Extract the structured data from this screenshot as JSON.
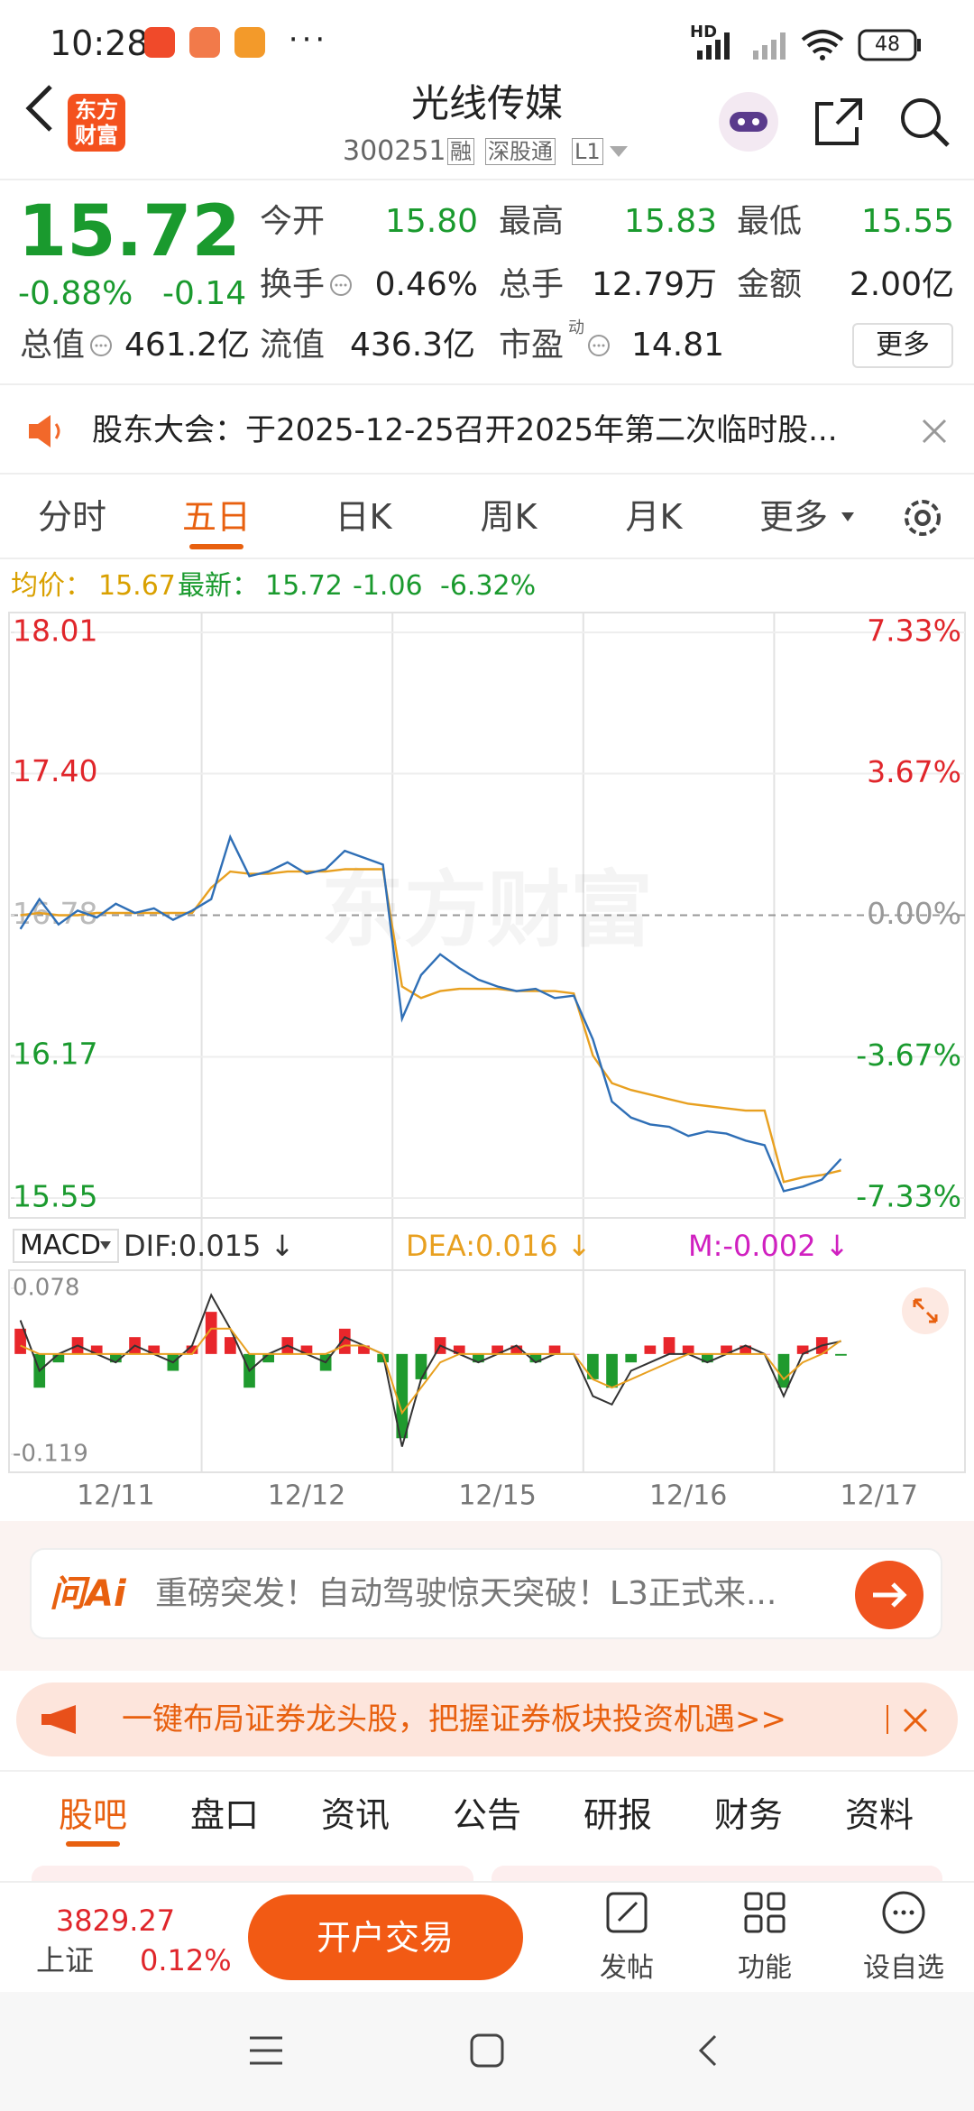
{
  "status": {
    "time": "10:28",
    "network": "HD",
    "battery": "48"
  },
  "header": {
    "logo": [
      "东方",
      "财富"
    ],
    "title": "光线传媒",
    "code": "300251",
    "tags": [
      "融",
      "深股通",
      "L1"
    ]
  },
  "quote": {
    "price": "15.72",
    "change_pct": "-0.88%",
    "change": "-0.14",
    "fields": [
      {
        "label": "今开",
        "value": "15.80"
      },
      {
        "label": "最高",
        "value": "15.83"
      },
      {
        "label": "最低",
        "value": "15.55"
      },
      {
        "label": "换手",
        "value": "0.46%"
      },
      {
        "label": "总手",
        "value": "12.79万"
      },
      {
        "label": "金额",
        "value": "2.00亿"
      },
      {
        "label": "总值",
        "value": "461.2亿"
      },
      {
        "label": "流值",
        "value": "436.3亿"
      },
      {
        "label": "市盈",
        "sup": "动",
        "value": "14.81"
      }
    ],
    "more": "更多"
  },
  "notice": "股东大会：于2025-12-25召开2025年第二次临时股...",
  "tabs": [
    "分时",
    "五日",
    "日K",
    "周K",
    "月K",
    "更多"
  ],
  "chart_header": {
    "avg_label": "均价：",
    "avg": "15.67",
    "last_label": "最新：",
    "last": "15.72",
    "change": "-1.06",
    "change_pct": "-6.32%"
  },
  "chart_data": [
    {
      "type": "line",
      "watermark": "东方财富",
      "ylim": [
        15.55,
        18.01
      ],
      "yticks": [
        15.55,
        16.17,
        16.78,
        {
          "value": 17.4,
          "label": "17.40"
        },
        18.01
      ],
      "y2lim": [
        -7.33,
        7.33
      ],
      "y2ticks": [
        {
          "value": -7.33,
          "label": "-7.33%"
        },
        {
          "value": -3.67,
          "label": "-3.67%"
        },
        {
          "value": 0,
          "label": "0.00%"
        },
        {
          "value": 3.67,
          "label": "3.67%"
        },
        {
          "value": 7.33,
          "label": "7.33%"
        }
      ],
      "grid": true,
      "series": [
        {
          "color": "#2f6fb6",
          "values": [
            16.72,
            16.85,
            16.74,
            16.8,
            16.77,
            16.83,
            16.79,
            16.81,
            16.76,
            16.8,
            16.85,
            17.12,
            16.95,
            16.97,
            17.01,
            16.96,
            16.98,
            17.06,
            17.03,
            17.0,
            16.33,
            16.52,
            16.61,
            16.55,
            16.5,
            16.47,
            16.45,
            16.46,
            16.42,
            16.43,
            16.24,
            15.97,
            15.9,
            15.87,
            15.86,
            15.82,
            15.84,
            15.83,
            15.8,
            15.78,
            15.58,
            15.6,
            15.63,
            15.72,
            null,
            null,
            null,
            null,
            null,
            null
          ]
        },
        {
          "color": "#e8a020",
          "values": [
            16.78,
            16.79,
            16.78,
            16.78,
            16.79,
            16.79,
            16.79,
            16.79,
            16.79,
            16.79,
            16.9,
            16.97,
            16.96,
            16.96,
            16.97,
            16.97,
            16.97,
            16.98,
            16.98,
            16.98,
            16.47,
            16.42,
            16.45,
            16.46,
            16.46,
            16.46,
            16.45,
            16.45,
            16.45,
            16.44,
            16.17,
            16.05,
            16.02,
            16.0,
            15.98,
            15.96,
            15.95,
            15.94,
            15.93,
            15.93,
            15.62,
            15.64,
            15.65,
            15.67,
            null,
            null,
            null,
            null,
            null,
            null
          ]
        }
      ]
    },
    {
      "type": "macd",
      "title": "MACD",
      "labels": [
        "DIF:0.015 ↓",
        "DEA:0.016 ↓",
        "M:-0.002 ↓"
      ],
      "categories": [
        null,
        null,
        null,
        null,
        null,
        "12/11",
        null,
        null,
        null,
        null,
        null,
        null,
        null,
        null,
        null,
        "12/12",
        null,
        null,
        null,
        null,
        null,
        null,
        null,
        null,
        null,
        "12/15",
        null,
        null,
        null,
        null,
        null,
        null,
        null,
        null,
        null,
        "12/16",
        null,
        null,
        null,
        null,
        null,
        null,
        null,
        null,
        null,
        "12/17",
        null,
        null,
        null,
        null
      ],
      "ylim": [
        -0.119,
        0.078
      ],
      "yticks": [
        -0.119,
        0.078
      ],
      "up_color": "#e8262b",
      "down_color": "#1f9a2e",
      "series": [
        {
          "values": [
            0.03,
            -0.04,
            -0.01,
            0.02,
            0.01,
            -0.01,
            0.02,
            0.01,
            -0.02,
            0.01,
            0.05,
            0.02,
            -0.04,
            -0.01,
            0.02,
            0.01,
            -0.02,
            0.03,
            0.01,
            -0.01,
            -0.1,
            -0.03,
            0.02,
            0.01,
            -0.01,
            0.01,
            0.01,
            -0.01,
            0.01,
            0.0,
            -0.03,
            -0.04,
            -0.01,
            0.01,
            0.02,
            0.01,
            -0.01,
            0.01,
            0.01,
            0.0,
            -0.04,
            0.01,
            0.02,
            -0.002,
            null,
            null,
            null,
            null,
            null,
            null
          ]
        },
        {
          "color": "#333333",
          "values": [
            0.04,
            -0.02,
            0.0,
            0.01,
            0.0,
            -0.01,
            0.01,
            0.0,
            -0.01,
            0.01,
            0.07,
            0.03,
            -0.02,
            0.0,
            0.01,
            0.0,
            -0.01,
            0.02,
            0.01,
            0.0,
            -0.11,
            -0.03,
            0.01,
            0.0,
            -0.01,
            0.0,
            0.01,
            -0.01,
            0.0,
            0.0,
            -0.05,
            -0.06,
            -0.02,
            -0.01,
            0.0,
            0.0,
            -0.01,
            0.0,
            0.01,
            0.0,
            -0.05,
            0.0,
            0.01,
            0.015,
            null,
            null,
            null,
            null,
            null,
            null
          ]
        },
        {
          "color": "#e8a020",
          "values": [
            0.01,
            0.0,
            0.0,
            0.0,
            0.0,
            0.0,
            0.0,
            0.0,
            0.0,
            0.0,
            0.03,
            0.03,
            0.0,
            0.0,
            0.0,
            0.0,
            0.0,
            0.01,
            0.01,
            0.0,
            -0.07,
            -0.04,
            -0.01,
            0.0,
            0.0,
            0.0,
            0.0,
            0.0,
            0.0,
            0.0,
            -0.03,
            -0.04,
            -0.03,
            -0.02,
            -0.01,
            0.0,
            0.0,
            0.0,
            0.0,
            0.0,
            -0.03,
            -0.01,
            0.0,
            0.016,
            null,
            null,
            null,
            null,
            null,
            null
          ]
        }
      ]
    }
  ],
  "ad": {
    "brand": "问Ai",
    "text": "重磅突发！自动驾驶惊天突破！L3正式来..."
  },
  "banner": "一键布局证券龙头股，把握证券板块投资机遇>>",
  "section_tabs": [
    "股吧",
    "盘口",
    "资讯",
    "公告",
    "研报",
    "财务",
    "资料"
  ],
  "bottom_bar": {
    "index_value": "3829.27",
    "index_name": "上证",
    "index_change": "0.12%",
    "trade": "开户交易",
    "actions": [
      "发帖",
      "功能",
      "设自选"
    ]
  }
}
